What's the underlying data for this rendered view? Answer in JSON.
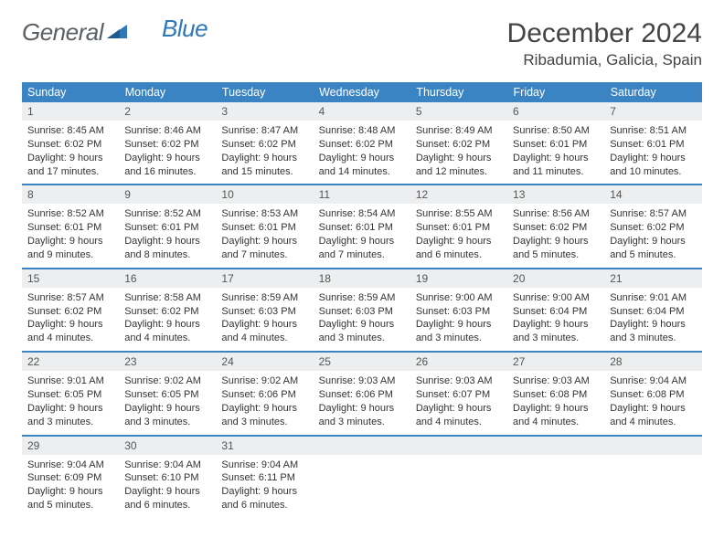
{
  "logo": {
    "text1": "General",
    "text2": "Blue"
  },
  "title": {
    "month": "December 2024",
    "location": "Ribadumia, Galicia, Spain"
  },
  "colors": {
    "header_bg": "#3b84c4",
    "header_text": "#ffffff",
    "daynum_bg": "#eceeef",
    "row_divider": "#3b84c4",
    "body_text": "#333333",
    "logo_gray": "#5a6066",
    "logo_blue": "#2f77b5"
  },
  "daysOfWeek": [
    "Sunday",
    "Monday",
    "Tuesday",
    "Wednesday",
    "Thursday",
    "Friday",
    "Saturday"
  ],
  "weeks": [
    [
      {
        "n": "1",
        "sr": "8:45 AM",
        "ss": "6:02 PM",
        "dl": "9 hours and 17 minutes."
      },
      {
        "n": "2",
        "sr": "8:46 AM",
        "ss": "6:02 PM",
        "dl": "9 hours and 16 minutes."
      },
      {
        "n": "3",
        "sr": "8:47 AM",
        "ss": "6:02 PM",
        "dl": "9 hours and 15 minutes."
      },
      {
        "n": "4",
        "sr": "8:48 AM",
        "ss": "6:02 PM",
        "dl": "9 hours and 14 minutes."
      },
      {
        "n": "5",
        "sr": "8:49 AM",
        "ss": "6:02 PM",
        "dl": "9 hours and 12 minutes."
      },
      {
        "n": "6",
        "sr": "8:50 AM",
        "ss": "6:01 PM",
        "dl": "9 hours and 11 minutes."
      },
      {
        "n": "7",
        "sr": "8:51 AM",
        "ss": "6:01 PM",
        "dl": "9 hours and 10 minutes."
      }
    ],
    [
      {
        "n": "8",
        "sr": "8:52 AM",
        "ss": "6:01 PM",
        "dl": "9 hours and 9 minutes."
      },
      {
        "n": "9",
        "sr": "8:52 AM",
        "ss": "6:01 PM",
        "dl": "9 hours and 8 minutes."
      },
      {
        "n": "10",
        "sr": "8:53 AM",
        "ss": "6:01 PM",
        "dl": "9 hours and 7 minutes."
      },
      {
        "n": "11",
        "sr": "8:54 AM",
        "ss": "6:01 PM",
        "dl": "9 hours and 7 minutes."
      },
      {
        "n": "12",
        "sr": "8:55 AM",
        "ss": "6:01 PM",
        "dl": "9 hours and 6 minutes."
      },
      {
        "n": "13",
        "sr": "8:56 AM",
        "ss": "6:02 PM",
        "dl": "9 hours and 5 minutes."
      },
      {
        "n": "14",
        "sr": "8:57 AM",
        "ss": "6:02 PM",
        "dl": "9 hours and 5 minutes."
      }
    ],
    [
      {
        "n": "15",
        "sr": "8:57 AM",
        "ss": "6:02 PM",
        "dl": "9 hours and 4 minutes."
      },
      {
        "n": "16",
        "sr": "8:58 AM",
        "ss": "6:02 PM",
        "dl": "9 hours and 4 minutes."
      },
      {
        "n": "17",
        "sr": "8:59 AM",
        "ss": "6:03 PM",
        "dl": "9 hours and 4 minutes."
      },
      {
        "n": "18",
        "sr": "8:59 AM",
        "ss": "6:03 PM",
        "dl": "9 hours and 3 minutes."
      },
      {
        "n": "19",
        "sr": "9:00 AM",
        "ss": "6:03 PM",
        "dl": "9 hours and 3 minutes."
      },
      {
        "n": "20",
        "sr": "9:00 AM",
        "ss": "6:04 PM",
        "dl": "9 hours and 3 minutes."
      },
      {
        "n": "21",
        "sr": "9:01 AM",
        "ss": "6:04 PM",
        "dl": "9 hours and 3 minutes."
      }
    ],
    [
      {
        "n": "22",
        "sr": "9:01 AM",
        "ss": "6:05 PM",
        "dl": "9 hours and 3 minutes."
      },
      {
        "n": "23",
        "sr": "9:02 AM",
        "ss": "6:05 PM",
        "dl": "9 hours and 3 minutes."
      },
      {
        "n": "24",
        "sr": "9:02 AM",
        "ss": "6:06 PM",
        "dl": "9 hours and 3 minutes."
      },
      {
        "n": "25",
        "sr": "9:03 AM",
        "ss": "6:06 PM",
        "dl": "9 hours and 3 minutes."
      },
      {
        "n": "26",
        "sr": "9:03 AM",
        "ss": "6:07 PM",
        "dl": "9 hours and 4 minutes."
      },
      {
        "n": "27",
        "sr": "9:03 AM",
        "ss": "6:08 PM",
        "dl": "9 hours and 4 minutes."
      },
      {
        "n": "28",
        "sr": "9:04 AM",
        "ss": "6:08 PM",
        "dl": "9 hours and 4 minutes."
      }
    ],
    [
      {
        "n": "29",
        "sr": "9:04 AM",
        "ss": "6:09 PM",
        "dl": "9 hours and 5 minutes."
      },
      {
        "n": "30",
        "sr": "9:04 AM",
        "ss": "6:10 PM",
        "dl": "9 hours and 6 minutes."
      },
      {
        "n": "31",
        "sr": "9:04 AM",
        "ss": "6:11 PM",
        "dl": "9 hours and 6 minutes."
      },
      null,
      null,
      null,
      null
    ]
  ],
  "labels": {
    "sunrise": "Sunrise: ",
    "sunset": "Sunset: ",
    "daylight": "Daylight: "
  }
}
